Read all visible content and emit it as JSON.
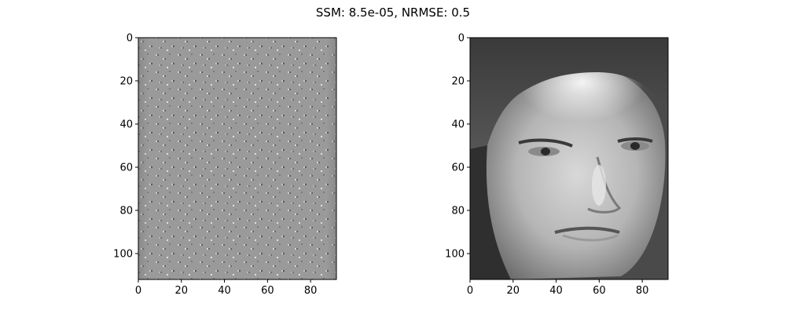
{
  "chart_data": {
    "type": "heatmap",
    "title": "SSM: 8.5e-05, NRMSE: 0.5",
    "colormap": "gray",
    "panels": [
      {
        "name": "difference-image",
        "image_size": [
          92,
          112
        ],
        "xlim": [
          0,
          92
        ],
        "ylim": [
          112,
          0
        ],
        "xticks": [
          0,
          20,
          40,
          60,
          80
        ],
        "yticks": [
          0,
          20,
          40,
          60,
          80,
          100
        ],
        "content": "noise pattern (mean mid gray)"
      },
      {
        "name": "face-image",
        "image_size": [
          92,
          112
        ],
        "xlim": [
          0,
          92
        ],
        "ylim": [
          112,
          0
        ],
        "xticks": [
          0,
          20,
          40,
          60,
          80
        ],
        "yticks": [
          0,
          20,
          40,
          60,
          80,
          100
        ],
        "content": "grayscale face photograph"
      }
    ]
  }
}
